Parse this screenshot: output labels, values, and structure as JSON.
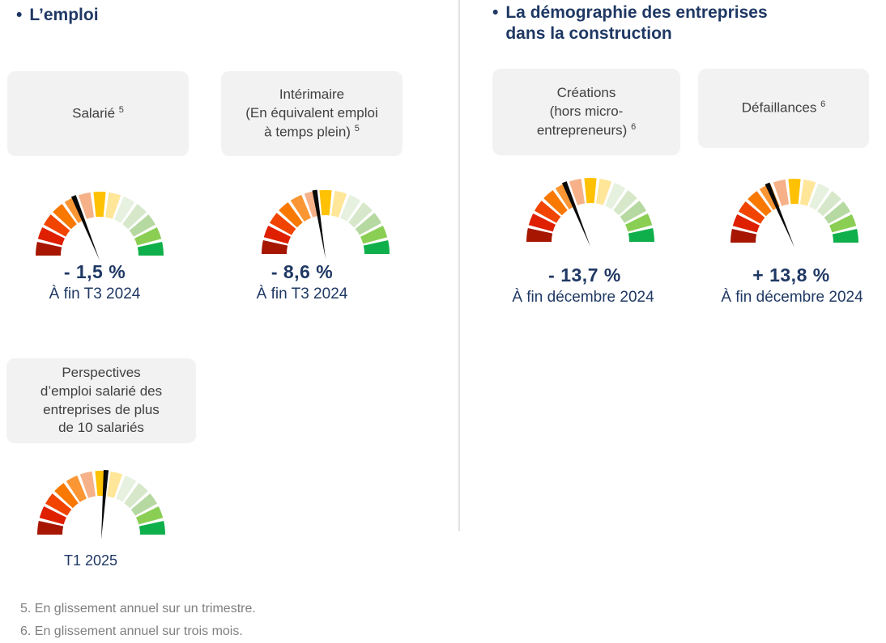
{
  "colors": {
    "heading": "#1F3864",
    "value_text": "#1F3864",
    "card_bg": "#F2F2F2",
    "card_text": "#404040",
    "footnote_text": "#7F7F7F",
    "divider": "#E3E3E3",
    "needle": "#0A0A0A"
  },
  "left_section": {
    "bullet": "•",
    "title": "L’emploi"
  },
  "right_section": {
    "bullet": "•",
    "title_lines": [
      "La démographie des entreprises",
      "dans la construction"
    ]
  },
  "gauge_palette": [
    "#A61601",
    "#DE1F00",
    "#F04400",
    "#F87800",
    "#FA9633",
    "#F6B189",
    "#FFC103",
    "#FFE699",
    "#E7F1E0",
    "#D6E8C9",
    "#B6D9A2",
    "#8ACE53",
    "#0FAF4B"
  ],
  "indicators": [
    {
      "key": "salarie",
      "card_lines": [
        "Salarié"
      ],
      "footnote_ref": "5",
      "value": "- 1,5 %",
      "period": "À fin T3 2024",
      "needle_deg": -22
    },
    {
      "key": "interimaire",
      "card_lines": [
        "Intérimaire",
        "(En équivalent emploi",
        "à temps plein)"
      ],
      "footnote_ref": "5",
      "value": "- 8,6 %",
      "period": "À fin T3 2024",
      "needle_deg": -9
    },
    {
      "key": "creations",
      "card_lines": [
        "Créations",
        "(hors micro-",
        "entrepreneurs)"
      ],
      "footnote_ref": "6",
      "value": "- 13,7 %",
      "period": "À fin décembre 2024",
      "needle_deg": -22
    },
    {
      "key": "defaillances",
      "card_lines": [
        "Défaillances"
      ],
      "footnote_ref": "6",
      "value": "+ 13,8 %",
      "period": "À fin décembre 2024",
      "needle_deg": -23
    },
    {
      "key": "perspectives",
      "card_lines": [
        "Perspectives",
        "d’emploi salarié des",
        "entreprises de plus",
        "de 10 salariés"
      ],
      "footnote_ref": null,
      "value": null,
      "period": "T1 2025",
      "needle_deg": 4
    }
  ],
  "footnotes": [
    "5. En glissement annuel sur un trimestre.",
    "6. En glissement annuel sur trois mois."
  ],
  "chart_data": [
    {
      "type": "gauge",
      "title": "Salarié",
      "value": -1.5,
      "unit": "%",
      "display_value": "- 1,5 %",
      "period": "À fin T3 2024",
      "needle_deg_from_vertical": -22,
      "scale": "semicircular 13-segment red(left/bad) to green(right/good)"
    },
    {
      "type": "gauge",
      "title": "Intérimaire (En équivalent emploi à temps plein)",
      "value": -8.6,
      "unit": "%",
      "display_value": "- 8,6 %",
      "period": "À fin T3 2024",
      "needle_deg_from_vertical": -9,
      "scale": "semicircular 13-segment red(left/bad) to green(right/good)"
    },
    {
      "type": "gauge",
      "title": "Créations (hors micro-entrepreneurs)",
      "value": -13.7,
      "unit": "%",
      "display_value": "- 13,7 %",
      "period": "À fin décembre 2024",
      "needle_deg_from_vertical": -22,
      "scale": "semicircular 13-segment red(left/bad) to green(right/good)"
    },
    {
      "type": "gauge",
      "title": "Défaillances",
      "value": 13.8,
      "unit": "%",
      "display_value": "+ 13,8 %",
      "period": "À fin décembre 2024",
      "needle_deg_from_vertical": -23,
      "scale": "semicircular 13-segment red(left/bad) to green(right/good)"
    },
    {
      "type": "gauge",
      "title": "Perspectives d’emploi salarié des entreprises de plus de 10 salariés",
      "value": null,
      "unit": "%",
      "display_value": null,
      "period": "T1 2025",
      "needle_deg_from_vertical": 4,
      "scale": "semicircular 13-segment red(left/bad) to green(right/good)"
    }
  ]
}
